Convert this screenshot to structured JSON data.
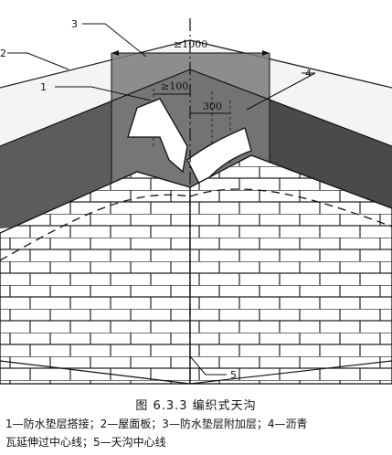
{
  "figure": {
    "callouts": {
      "c1": "1",
      "c2": "2",
      "c3": "3",
      "c4": "4",
      "c5": "5"
    },
    "dimensions": {
      "top_width": "≥1000",
      "lap": "≥100",
      "offset": "300"
    }
  },
  "caption": {
    "title": "图 6.3.3   编织式天沟",
    "line1": "1—防水垫层搭接；2—屋面板；3—防水垫层附加层；4—沥青",
    "line2": "瓦延伸过中心线；5—天沟中心线"
  }
}
